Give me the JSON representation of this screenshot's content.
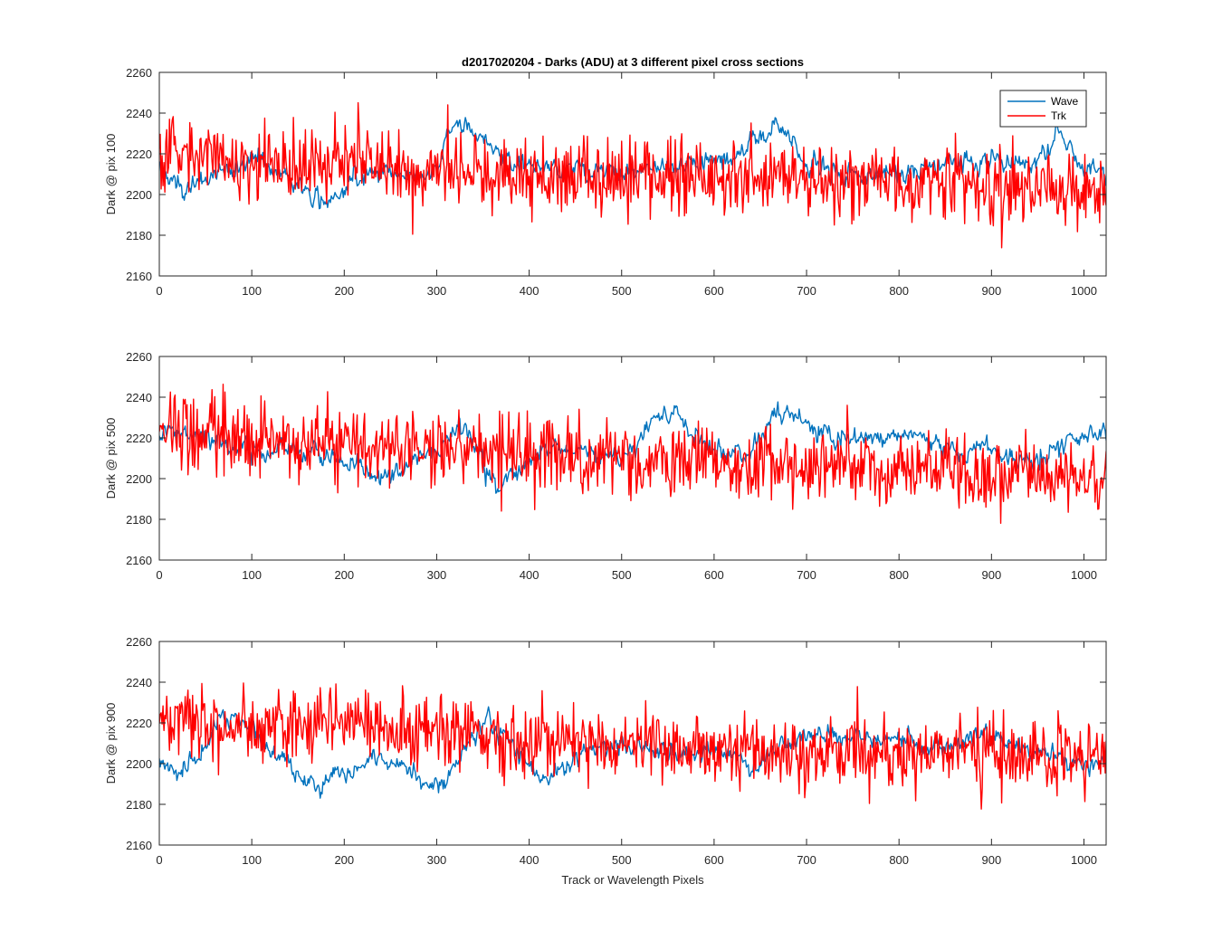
{
  "chart_data": {
    "type": "line",
    "title": "d2017020204 - Darks (ADU) at 3 different pixel cross sections",
    "xlabel": "Track or Wavelength Pixels",
    "xlim": [
      0,
      1024
    ],
    "ylim": [
      2160,
      2260
    ],
    "xticks": [
      0,
      100,
      200,
      300,
      400,
      500,
      600,
      700,
      800,
      900,
      1000
    ],
    "yticks": [
      2160,
      2180,
      2200,
      2220,
      2240,
      2260
    ],
    "legend": {
      "placement": "top-right",
      "entries": [
        "Wave",
        "Trk"
      ]
    },
    "series_colors": {
      "Wave": "#0072bd",
      "Trk": "#ff0000"
    },
    "noise": {
      "Wave": 4,
      "Trk": 9
    },
    "panels": [
      {
        "ylabel": "Dark @ pix 100",
        "series": [
          {
            "name": "Wave",
            "x": [
              0,
              10,
              25,
              50,
              80,
              100,
              130,
              150,
              160,
              175,
              190,
              210,
              250,
              280,
              300,
              310,
              320,
              330,
              350,
              380,
              420,
              500,
              560,
              620,
              650,
              665,
              680,
              700,
              760,
              800,
              850,
              900,
              940,
              960,
              970,
              985,
              1000,
              1024
            ],
            "y": [
              2215,
              2207,
              2202,
              2208,
              2212,
              2218,
              2212,
              2205,
              2200,
              2196,
              2198,
              2210,
              2212,
              2208,
              2212,
              2228,
              2236,
              2235,
              2226,
              2216,
              2214,
              2211,
              2213,
              2218,
              2228,
              2234,
              2230,
              2214,
              2210,
              2210,
              2215,
              2218,
              2215,
              2222,
              2232,
              2222,
              2212,
              2212
            ]
          },
          {
            "name": "Trk",
            "x": [
              0,
              50,
              100,
              200,
              300,
              400,
              500,
              600,
              700,
              800,
              900,
              1000,
              1024
            ],
            "y": [
              2221,
              2218,
              2216,
              2215,
              2213,
              2210,
              2209,
              2208,
              2207,
              2205,
              2205,
              2204,
              2204
            ]
          }
        ]
      },
      {
        "ylabel": "Dark @ pix 500",
        "series": [
          {
            "name": "Wave",
            "x": [
              0,
              40,
              80,
              120,
              160,
              200,
              240,
              270,
              300,
              320,
              330,
              350,
              365,
              390,
              420,
              450,
              500,
              520,
              540,
              560,
              580,
              600,
              640,
              660,
              680,
              700,
              740,
              780,
              800,
              840,
              870,
              900,
              930,
              960,
              980,
              1000,
              1024
            ],
            "y": [
              2222,
              2221,
              2215,
              2210,
              2214,
              2210,
              2200,
              2206,
              2213,
              2222,
              2226,
              2206,
              2197,
              2205,
              2218,
              2214,
              2210,
              2220,
              2232,
              2232,
              2222,
              2213,
              2213,
              2228,
              2232,
              2226,
              2220,
              2220,
              2222,
              2216,
              2212,
              2214,
              2208,
              2212,
              2218,
              2222,
              2220
            ]
          },
          {
            "name": "Trk",
            "x": [
              0,
              50,
              100,
              200,
              300,
              400,
              500,
              600,
              700,
              800,
              900,
              1000,
              1024
            ],
            "y": [
              2224,
              2222,
              2220,
              2216,
              2214,
              2211,
              2209,
              2208,
              2207,
              2205,
              2203,
              2200,
              2200
            ]
          }
        ]
      },
      {
        "ylabel": "Dark @ pix 900",
        "series": [
          {
            "name": "Wave",
            "x": [
              0,
              10,
              25,
              45,
              65,
              90,
              110,
              130,
              150,
              170,
              200,
              230,
              260,
              290,
              310,
              330,
              355,
              380,
              400,
              420,
              440,
              470,
              500,
              550,
              600,
              650,
              680,
              700,
              750,
              800,
              850,
              900,
              950,
              1000,
              1024
            ],
            "y": [
              2202,
              2198,
              2196,
              2206,
              2222,
              2222,
              2212,
              2202,
              2194,
              2188,
              2194,
              2202,
              2200,
              2190,
              2190,
              2208,
              2222,
              2212,
              2198,
              2190,
              2200,
              2208,
              2210,
              2204,
              2206,
              2200,
              2212,
              2213,
              2212,
              2212,
              2208,
              2212,
              2206,
              2200,
              2202
            ]
          },
          {
            "name": "Trk",
            "x": [
              0,
              50,
              100,
              150,
              200,
              250,
              300,
              350,
              400,
              500,
              600,
              700,
              800,
              900,
              1000,
              1024
            ],
            "y": [
              2222,
              2220,
              2216,
              2218,
              2220,
              2218,
              2216,
              2214,
              2211,
              2209,
              2208,
              2207,
              2206,
              2205,
              2204,
              2204
            ]
          }
        ]
      }
    ]
  }
}
